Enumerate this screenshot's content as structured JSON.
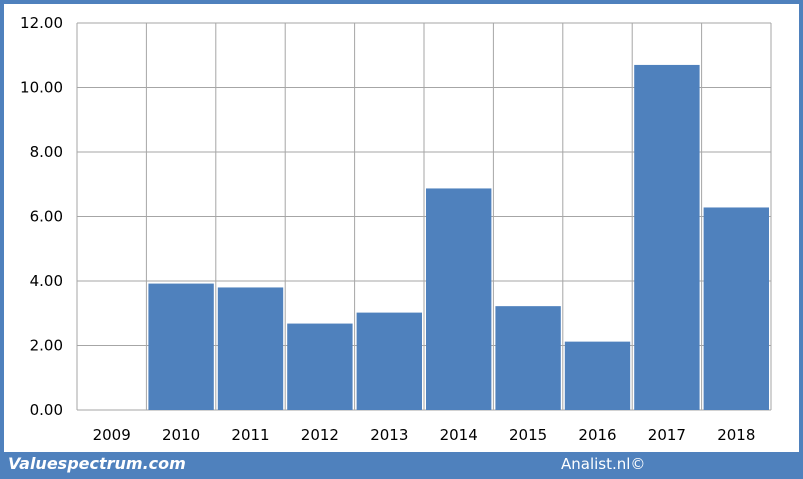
{
  "chart_data": {
    "type": "bar",
    "categories": [
      "2009",
      "2010",
      "2011",
      "2012",
      "2013",
      "2014",
      "2015",
      "2016",
      "2017",
      "2018"
    ],
    "values": [
      0,
      3.92,
      3.8,
      2.68,
      3.02,
      6.87,
      3.22,
      2.12,
      10.7,
      6.28
    ],
    "y_ticks": [
      "0.00",
      "2.00",
      "4.00",
      "6.00",
      "8.00",
      "10.00",
      "12.00"
    ],
    "ylim": [
      0,
      12
    ],
    "grid": true,
    "bar_color": "#4f81bd",
    "grid_color": "#a6a6a6"
  },
  "footer": {
    "source_left": "Valuespectrum.com",
    "source_right": "Analist.nl©",
    "bar_color": "#4f81bd"
  }
}
